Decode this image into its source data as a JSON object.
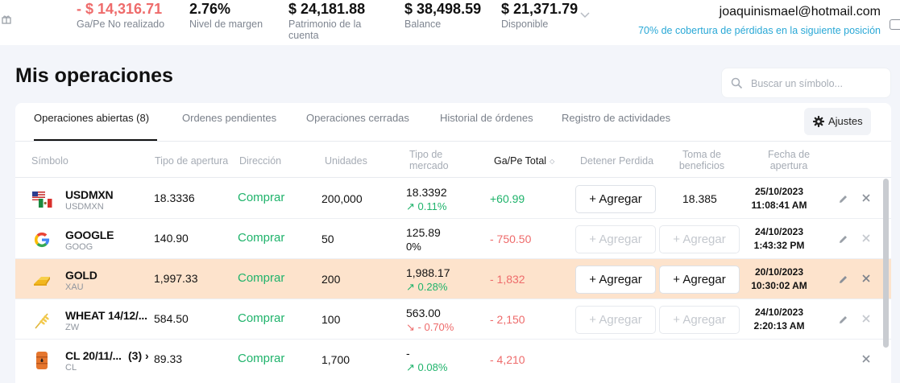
{
  "header": {
    "stats": [
      {
        "value": "- $ 14,316.71",
        "label": "Ga/Pe No realizado",
        "tone": "negative"
      },
      {
        "value": "2.76%",
        "label": "Nivel de margen",
        "tone": "neutral"
      },
      {
        "value": "$ 24,181.88",
        "label": "Patrimonio de la cuenta",
        "tone": "neutral"
      },
      {
        "value": "$ 38,498.59",
        "label": "Balance",
        "tone": "neutral"
      },
      {
        "value": "$ 21,371.79",
        "label": "Disponible",
        "tone": "neutral"
      }
    ],
    "email": "joaquinismael@hotmail.com",
    "coverage": "70% de cobertura de pérdidas en la siguiente posición"
  },
  "page": {
    "title": "Mis operaciones",
    "search_placeholder": "Buscar un símbolo..."
  },
  "tabs": [
    {
      "label": "Operaciones abiertas (8)",
      "active": true
    },
    {
      "label": "Ordenes pendientes",
      "active": false
    },
    {
      "label": "Operaciones cerradas",
      "active": false
    },
    {
      "label": "Historial de órdenes",
      "active": false
    },
    {
      "label": "Registro de actividades",
      "active": false
    }
  ],
  "settings_label": "Ajustes",
  "columns": {
    "symbol": "Símbolo",
    "open_type": "Tipo de apertura",
    "direction": "Dirección",
    "units": "Unidades",
    "market_type": "Tipo de mercado",
    "pnl_total": "Ga/Pe Total",
    "stop_loss": "Detener Perdida",
    "take_profit": "Toma de beneficios",
    "open_date": "Fecha de apertura"
  },
  "rows": [
    {
      "symbol": "USDMXN",
      "code": "USDMXN",
      "logo": "usd-mxn-flags-icon",
      "open": "18.3336",
      "direction": "Comprar",
      "units": "200,000",
      "market": "18.3392",
      "change": "0.11%",
      "change_dir": "up",
      "pnl": "+60.99",
      "pnl_tone": "positive",
      "sl_button": "+ Agregar",
      "sl_enabled": true,
      "tp_value": "18.385",
      "date": "25/10/2023",
      "time": "11:08:41 AM",
      "highlight": false
    },
    {
      "symbol": "GOOGLE",
      "code": "GOOG",
      "logo": "google-logo-icon",
      "open": "140.90",
      "direction": "Comprar",
      "units": "50",
      "market": "125.89",
      "change": "0%",
      "change_dir": "none",
      "pnl": "- 750.50",
      "pnl_tone": "negative",
      "sl_button": "+ Agregar",
      "sl_enabled": false,
      "tp_button": "+ Agregar",
      "tp_enabled": false,
      "date": "24/10/2023",
      "time": "1:43:32 PM",
      "highlight": false
    },
    {
      "symbol": "GOLD",
      "code": "XAU",
      "logo": "gold-bars-icon",
      "open": "1,997.33",
      "direction": "Comprar",
      "units": "200",
      "market": "1,988.17",
      "change": "0.28%",
      "change_dir": "up",
      "pnl": "- 1,832",
      "pnl_tone": "negative",
      "sl_button": "+ Agregar",
      "sl_enabled": true,
      "tp_button": "+ Agregar",
      "tp_enabled": true,
      "date": "20/10/2023",
      "time": "10:30:02 AM",
      "highlight": true
    },
    {
      "symbol": "WHEAT 14/12/...",
      "code": "ZW",
      "logo": "wheat-icon",
      "open": "584.50",
      "direction": "Comprar",
      "units": "100",
      "market": "563.00",
      "change": "- 0.70%",
      "change_dir": "down",
      "pnl": "- 2,150",
      "pnl_tone": "negative",
      "sl_button": "+ Agregar",
      "sl_enabled": false,
      "tp_button": "+ Agregar",
      "tp_enabled": false,
      "date": "24/10/2023",
      "time": "2:20:13 AM",
      "highlight": false
    },
    {
      "symbol": "CL 20/11/...",
      "group_count": "(3)",
      "code": "CL",
      "logo": "oil-barrel-icon",
      "open": "89.33",
      "direction": "Comprar",
      "units": "1,700",
      "market": "-",
      "change": "0.08%",
      "change_dir": "up",
      "pnl": "- 4,210",
      "pnl_tone": "negative",
      "date": "",
      "time": "",
      "highlight": false
    }
  ],
  "colors": {
    "positive": "#1fb36b",
    "negative": "#ee6b6b",
    "link": "#29a8d6",
    "highlight_row": "#fde3cc"
  }
}
